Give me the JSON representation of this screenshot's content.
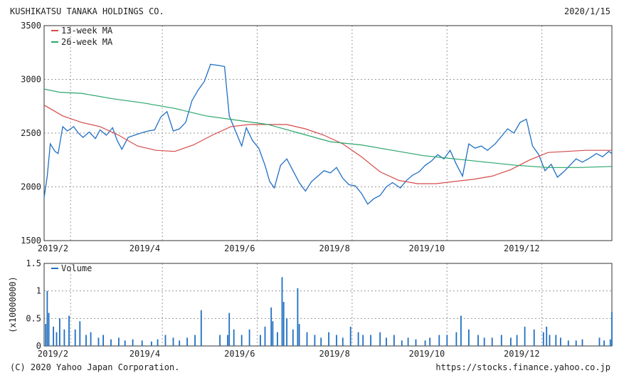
{
  "header": {
    "company": "KUSHIKATSU TANAKA HOLDINGS CO.",
    "date": "2020/1/15"
  },
  "footer": {
    "copyright": "(C) 2020 Yahoo Japan Corporation.",
    "source": "https://stocks.finance.yahoo.co.jp"
  },
  "colors": {
    "price": "#1f6fc4",
    "ma13": "#d44a4a",
    "ma26": "#2aa66a",
    "volume": "#1f6fc4",
    "grid": "#9a9a9a"
  },
  "chart_data": [
    {
      "type": "line",
      "title": "",
      "xlabel": "",
      "ylabel": "",
      "ylim": [
        1500,
        3500
      ],
      "yticks": [
        "3500",
        "3000",
        "2500",
        "2000",
        "1500"
      ],
      "x_ticks": [
        "2019/2",
        "2019/4",
        "2019/6",
        "2019/8",
        "2019/10",
        "2019/12"
      ],
      "x_range": [
        "2019/1/15",
        "2020/1/15"
      ],
      "grid": true,
      "legend": "top-left",
      "series": [
        {
          "name": "",
          "role": "price",
          "points": [
            [
              "2019/1/15",
              1900
            ],
            [
              "2019/1/17",
              2100
            ],
            [
              "2019/1/19",
              2400
            ],
            [
              "2019/1/22",
              2330
            ],
            [
              "2019/1/24",
              2310
            ],
            [
              "2019/1/27",
              2560
            ],
            [
              "2019/1/30",
              2520
            ],
            [
              "2019/2/3",
              2560
            ],
            [
              "2019/2/6",
              2500
            ],
            [
              "2019/2/9",
              2460
            ],
            [
              "2019/2/13",
              2510
            ],
            [
              "2019/2/17",
              2450
            ],
            [
              "2019/2/20",
              2530
            ],
            [
              "2019/2/24",
              2480
            ],
            [
              "2019/2/28",
              2550
            ],
            [
              "2019/3/3",
              2430
            ],
            [
              "2019/3/6",
              2350
            ],
            [
              "2019/3/10",
              2460
            ],
            [
              "2019/3/14",
              2480
            ],
            [
              "2019/3/18",
              2500
            ],
            [
              "2019/3/23",
              2520
            ],
            [
              "2019/3/27",
              2530
            ],
            [
              "2019/3/31",
              2650
            ],
            [
              "2019/4/4",
              2700
            ],
            [
              "2019/4/8",
              2520
            ],
            [
              "2019/4/12",
              2540
            ],
            [
              "2019/4/16",
              2600
            ],
            [
              "2019/4/20",
              2800
            ],
            [
              "2019/4/24",
              2900
            ],
            [
              "2019/4/28",
              2980
            ],
            [
              "2019/5/2",
              3140
            ],
            [
              "2019/5/7",
              3130
            ],
            [
              "2019/5/11",
              3120
            ],
            [
              "2019/5/14",
              2660
            ],
            [
              "2019/5/18",
              2520
            ],
            [
              "2019/5/22",
              2380
            ],
            [
              "2019/5/25",
              2550
            ],
            [
              "2019/5/29",
              2430
            ],
            [
              "2019/6/2",
              2360
            ],
            [
              "2019/6/6",
              2200
            ],
            [
              "2019/6/9",
              2050
            ],
            [
              "2019/6/12",
              1990
            ],
            [
              "2019/6/16",
              2200
            ],
            [
              "2019/6/20",
              2260
            ],
            [
              "2019/6/24",
              2150
            ],
            [
              "2019/6/28",
              2040
            ],
            [
              "2019/7/2",
              1960
            ],
            [
              "2019/7/6",
              2050
            ],
            [
              "2019/7/10",
              2100
            ],
            [
              "2019/7/14",
              2150
            ],
            [
              "2019/7/18",
              2130
            ],
            [
              "2019/7/22",
              2180
            ],
            [
              "2019/7/26",
              2080
            ],
            [
              "2019/7/30",
              2020
            ],
            [
              "2019/8/3",
              2010
            ],
            [
              "2019/8/7",
              1940
            ],
            [
              "2019/8/11",
              1840
            ],
            [
              "2019/8/15",
              1890
            ],
            [
              "2019/8/19",
              1920
            ],
            [
              "2019/8/23",
              2000
            ],
            [
              "2019/8/27",
              2040
            ],
            [
              "2019/9/1",
              1990
            ],
            [
              "2019/9/5",
              2060
            ],
            [
              "2019/9/9",
              2110
            ],
            [
              "2019/9/13",
              2140
            ],
            [
              "2019/9/17",
              2200
            ],
            [
              "2019/9/21",
              2240
            ],
            [
              "2019/9/25",
              2300
            ],
            [
              "2019/9/29",
              2260
            ],
            [
              "2019/10/3",
              2340
            ],
            [
              "2019/10/7",
              2210
            ],
            [
              "2019/10/11",
              2100
            ],
            [
              "2019/10/15",
              2400
            ],
            [
              "2019/10/19",
              2360
            ],
            [
              "2019/10/23",
              2380
            ],
            [
              "2019/10/27",
              2340
            ],
            [
              "2019/11/1",
              2400
            ],
            [
              "2019/11/5",
              2470
            ],
            [
              "2019/11/9",
              2540
            ],
            [
              "2019/11/13",
              2500
            ],
            [
              "2019/11/17",
              2600
            ],
            [
              "2019/11/21",
              2630
            ],
            [
              "2019/11/25",
              2380
            ],
            [
              "2019/11/29",
              2300
            ],
            [
              "2019/12/3",
              2150
            ],
            [
              "2019/12/7",
              2210
            ],
            [
              "2019/12/11",
              2090
            ],
            [
              "2019/12/15",
              2140
            ],
            [
              "2019/12/19",
              2200
            ],
            [
              "2019/12/23",
              2260
            ],
            [
              "2019/12/27",
              2230
            ],
            [
              "2020/1/1",
              2270
            ],
            [
              "2020/1/5",
              2310
            ],
            [
              "2020/1/9",
              2280
            ],
            [
              "2020/1/13",
              2330
            ],
            [
              "2020/1/15",
              2310
            ]
          ]
        },
        {
          "name": "13-week MA",
          "role": "ma13",
          "points": [
            [
              "2019/1/15",
              2760
            ],
            [
              "2019/1/27",
              2660
            ],
            [
              "2019/2/8",
              2600
            ],
            [
              "2019/2/20",
              2560
            ],
            [
              "2019/3/4",
              2480
            ],
            [
              "2019/3/16",
              2380
            ],
            [
              "2019/3/28",
              2340
            ],
            [
              "2019/4/9",
              2330
            ],
            [
              "2019/4/21",
              2390
            ],
            [
              "2019/5/3",
              2480
            ],
            [
              "2019/5/15",
              2560
            ],
            [
              "2019/5/27",
              2580
            ],
            [
              "2019/6/8",
              2580
            ],
            [
              "2019/6/20",
              2580
            ],
            [
              "2019/7/2",
              2540
            ],
            [
              "2019/7/14",
              2480
            ],
            [
              "2019/7/26",
              2400
            ],
            [
              "2019/8/7",
              2280
            ],
            [
              "2019/8/19",
              2140
            ],
            [
              "2019/8/31",
              2060
            ],
            [
              "2019/9/12",
              2030
            ],
            [
              "2019/9/24",
              2030
            ],
            [
              "2019/10/6",
              2050
            ],
            [
              "2019/10/18",
              2070
            ],
            [
              "2019/10/30",
              2100
            ],
            [
              "2019/11/11",
              2160
            ],
            [
              "2019/11/23",
              2250
            ],
            [
              "2019/12/5",
              2320
            ],
            [
              "2019/12/17",
              2330
            ],
            [
              "2019/12/29",
              2340
            ],
            [
              "2020/1/10",
              2340
            ],
            [
              "2020/1/15",
              2340
            ]
          ]
        },
        {
          "name": "26-week MA",
          "role": "ma26",
          "points": [
            [
              "2019/1/15",
              2910
            ],
            [
              "2019/1/25",
              2880
            ],
            [
              "2019/2/8",
              2870
            ],
            [
              "2019/2/28",
              2820
            ],
            [
              "2019/3/20",
              2780
            ],
            [
              "2019/4/9",
              2730
            ],
            [
              "2019/4/29",
              2660
            ],
            [
              "2019/5/19",
              2620
            ],
            [
              "2019/6/8",
              2580
            ],
            [
              "2019/6/28",
              2500
            ],
            [
              "2019/7/18",
              2420
            ],
            [
              "2019/8/7",
              2390
            ],
            [
              "2019/8/27",
              2340
            ],
            [
              "2019/9/16",
              2290
            ],
            [
              "2019/10/6",
              2260
            ],
            [
              "2019/10/26",
              2230
            ],
            [
              "2019/11/15",
              2200
            ],
            [
              "2019/12/5",
              2180
            ],
            [
              "2019/12/25",
              2180
            ],
            [
              "2020/1/15",
              2190
            ]
          ]
        }
      ]
    },
    {
      "type": "bar",
      "title": "",
      "xlabel": "",
      "ylabel": "(x10000000)",
      "ylim": [
        0,
        1.5
      ],
      "yticks": [
        "1.5",
        "1",
        "0.5",
        "0"
      ],
      "x_ticks": [
        "2019/2",
        "2019/4",
        "2019/6",
        "2019/8",
        "2019/10",
        "2019/12"
      ],
      "grid": true,
      "legend": "top-left",
      "series": [
        {
          "name": "Volume",
          "points": [
            [
              "2019/1/16",
              0.4
            ],
            [
              "2019/1/17",
              1.0
            ],
            [
              "2019/1/18",
              0.6
            ],
            [
              "2019/1/21",
              0.35
            ],
            [
              "2019/1/23",
              0.25
            ],
            [
              "2019/1/25",
              0.5
            ],
            [
              "2019/1/28",
              0.3
            ],
            [
              "2019/1/31",
              0.55
            ],
            [
              "2019/2/4",
              0.3
            ],
            [
              "2019/2/7",
              0.45
            ],
            [
              "2019/2/11",
              0.2
            ],
            [
              "2019/2/14",
              0.25
            ],
            [
              "2019/2/19",
              0.15
            ],
            [
              "2019/2/22",
              0.2
            ],
            [
              "2019/2/27",
              0.12
            ],
            [
              "2019/3/4",
              0.15
            ],
            [
              "2019/3/8",
              0.1
            ],
            [
              "2019/3/13",
              0.12
            ],
            [
              "2019/3/19",
              0.1
            ],
            [
              "2019/3/25",
              0.08
            ],
            [
              "2019/3/29",
              0.12
            ],
            [
              "2019/4/3",
              0.2
            ],
            [
              "2019/4/8",
              0.15
            ],
            [
              "2019/4/12",
              0.1
            ],
            [
              "2019/4/17",
              0.15
            ],
            [
              "2019/4/22",
              0.2
            ],
            [
              "2019/4/26",
              0.65
            ],
            [
              "2019/5/8",
              0.2
            ],
            [
              "2019/5/13",
              0.2
            ],
            [
              "2019/5/14",
              0.6
            ],
            [
              "2019/5/17",
              0.3
            ],
            [
              "2019/5/22",
              0.2
            ],
            [
              "2019/5/27",
              0.3
            ],
            [
              "2019/6/3",
              0.2
            ],
            [
              "2019/6/6",
              0.35
            ],
            [
              "2019/6/10",
              0.7
            ],
            [
              "2019/6/11",
              0.45
            ],
            [
              "2019/6/14",
              0.25
            ],
            [
              "2019/6/17",
              1.25
            ],
            [
              "2019/6/18",
              0.8
            ],
            [
              "2019/6/20",
              0.5
            ],
            [
              "2019/6/24",
              0.3
            ],
            [
              "2019/6/27",
              1.05
            ],
            [
              "2019/6/28",
              0.4
            ],
            [
              "2019/7/3",
              0.25
            ],
            [
              "2019/7/8",
              0.2
            ],
            [
              "2019/7/12",
              0.15
            ],
            [
              "2019/7/17",
              0.25
            ],
            [
              "2019/7/22",
              0.2
            ],
            [
              "2019/7/26",
              0.15
            ],
            [
              "2019/7/31",
              0.35
            ],
            [
              "2019/8/5",
              0.25
            ],
            [
              "2019/8/8",
              0.2
            ],
            [
              "2019/8/13",
              0.2
            ],
            [
              "2019/8/19",
              0.25
            ],
            [
              "2019/8/23",
              0.15
            ],
            [
              "2019/8/28",
              0.2
            ],
            [
              "2019/9/2",
              0.1
            ],
            [
              "2019/9/6",
              0.15
            ],
            [
              "2019/9/11",
              0.12
            ],
            [
              "2019/9/17",
              0.1
            ],
            [
              "2019/9/20",
              0.15
            ],
            [
              "2019/9/26",
              0.2
            ],
            [
              "2019/10/1",
              0.2
            ],
            [
              "2019/10/7",
              0.25
            ],
            [
              "2019/10/10",
              0.55
            ],
            [
              "2019/10/15",
              0.3
            ],
            [
              "2019/10/21",
              0.2
            ],
            [
              "2019/10/25",
              0.15
            ],
            [
              "2019/10/30",
              0.15
            ],
            [
              "2019/11/5",
              0.2
            ],
            [
              "2019/11/11",
              0.15
            ],
            [
              "2019/11/15",
              0.2
            ],
            [
              "2019/11/20",
              0.35
            ],
            [
              "2019/11/26",
              0.3
            ],
            [
              "2019/12/2",
              0.25
            ],
            [
              "2019/12/4",
              0.35
            ],
            [
              "2019/12/6",
              0.2
            ],
            [
              "2019/12/10",
              0.2
            ],
            [
              "2019/12/13",
              0.15
            ],
            [
              "2019/12/18",
              0.1
            ],
            [
              "2019/12/23",
              0.1
            ],
            [
              "2019/12/27",
              0.12
            ],
            [
              "2020/1/7",
              0.15
            ],
            [
              "2020/1/10",
              0.1
            ],
            [
              "2020/1/14",
              0.12
            ],
            [
              "2020/1/15",
              0.62
            ]
          ]
        }
      ]
    }
  ]
}
